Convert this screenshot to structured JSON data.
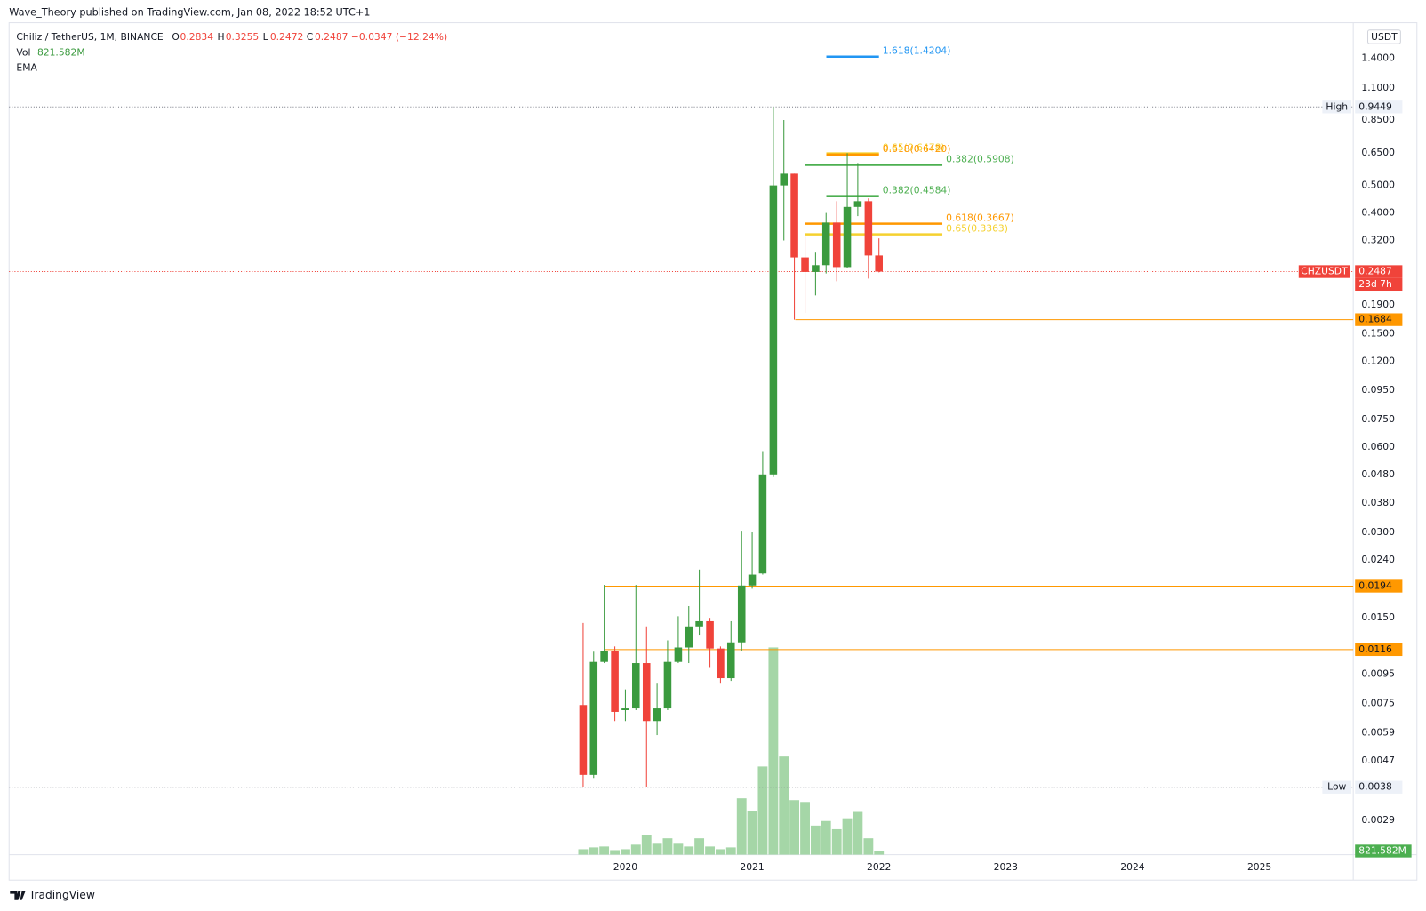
{
  "header": {
    "publisher": "Wave_Theory published on TradingView.com, Jan 08, 2022 18:52 UTC+1",
    "footer": "TradingView"
  },
  "chart_data": {
    "type": "candlestick",
    "symbol": "Chiliz / TetherUS, 1M, BINANCE",
    "ohlc_labels": [
      "O",
      "H",
      "L",
      "C"
    ],
    "change": "−0.0347 (−12.24%)",
    "indicators": [
      "Vol",
      "EMA"
    ],
    "currency": "USDT",
    "ticker": "CHZUSDT",
    "countdown": "23d 7h",
    "up_color": "#3a9a3e",
    "down_color": "#f0433a",
    "log_scale": true,
    "grid": false,
    "x": [
      2019.667,
      2019.75,
      2019.833,
      2019.917,
      2020.0,
      2020.083,
      2020.167,
      2020.25,
      2020.333,
      2020.417,
      2020.5,
      2020.583,
      2020.667,
      2020.75,
      2020.833,
      2020.917,
      2021.0,
      2021.083,
      2021.167,
      2021.25,
      2021.333,
      2021.417,
      2021.5,
      2021.583,
      2021.667,
      2021.75,
      2021.833,
      2021.917,
      2022.0
    ],
    "open": [
      0.0074,
      0.0042,
      0.0105,
      0.0115,
      0.0071,
      0.0072,
      0.0104,
      0.0065,
      0.0072,
      0.0105,
      0.0118,
      0.014,
      0.0146,
      0.0117,
      0.0092,
      0.0123,
      0.0195,
      0.0215,
      0.048,
      0.5,
      0.55,
      0.279,
      0.248,
      0.262,
      0.37,
      0.258,
      0.42,
      0.44,
      0.2834
    ],
    "high": [
      0.0144,
      0.0114,
      0.0196,
      0.0119,
      0.0084,
      0.0196,
      0.014,
      0.0088,
      0.0125,
      0.0152,
      0.0165,
      0.0222,
      0.015,
      0.0119,
      0.0146,
      0.0302,
      0.03,
      0.058,
      0.9449,
      0.85,
      0.55,
      0.33,
      0.29,
      0.4,
      0.44,
      0.65,
      0.6,
      0.45,
      0.3255
    ],
    "low": [
      0.0038,
      0.0041,
      0.0104,
      0.0065,
      0.0065,
      0.0071,
      0.0038,
      0.0058,
      0.0071,
      0.0104,
      0.0104,
      0.013,
      0.01,
      0.0088,
      0.009,
      0.0115,
      0.019,
      0.0213,
      0.047,
      0.32,
      0.1684,
      0.178,
      0.205,
      0.245,
      0.23,
      0.255,
      0.39,
      0.235,
      0.2472
    ],
    "close": [
      0.0042,
      0.0105,
      0.0115,
      0.007,
      0.0072,
      0.0104,
      0.0065,
      0.0072,
      0.0105,
      0.0118,
      0.014,
      0.0146,
      0.0117,
      0.0092,
      0.0123,
      0.0195,
      0.0213,
      0.048,
      0.5,
      0.55,
      0.279,
      0.248,
      0.262,
      0.37,
      0.258,
      0.42,
      0.44,
      0.2834,
      0.2487
    ],
    "volume": {
      "name": "Vol",
      "color": "#a5d6a7",
      "ylim": [
        0,
        60000
      ],
      "values": [
        1232,
        1643,
        1849,
        1027,
        1232,
        2259,
        4519,
        2465,
        3697,
        2465,
        1849,
        3697,
        1849,
        1232,
        1643,
        12735,
        9859,
        19924,
        46831,
        22183,
        12324,
        11913,
        6573,
        7600,
        5751,
        8216,
        9654,
        3697,
        821.582
      ],
      "value_labels": [
        null,
        null,
        null,
        null,
        null,
        null,
        null,
        null,
        null,
        null,
        null,
        null,
        null,
        null,
        null,
        null,
        null,
        null,
        null,
        null,
        null,
        null,
        null,
        null,
        null,
        null,
        null,
        null,
        "821.582M"
      ]
    },
    "xlim": [
      2015.14,
      2025.74
    ],
    "xticks": [
      2020,
      2021,
      2022,
      2023,
      2024,
      2025
    ],
    "ylim": [
      0.0022,
      1.87
    ],
    "yticks": [
      {
        "value": 1.4,
        "label": "1.4000"
      },
      {
        "value": 1.1,
        "label": "1.1000"
      },
      {
        "value": 0.85,
        "label": "0.8500"
      },
      {
        "value": 0.65,
        "label": "0.6500"
      },
      {
        "value": 0.5,
        "label": "0.5000"
      },
      {
        "value": 0.4,
        "label": "0.4000"
      },
      {
        "value": 0.32,
        "label": "0.3200"
      },
      {
        "value": 0.19,
        "label": "0.1900"
      },
      {
        "value": 0.15,
        "label": "0.1500"
      },
      {
        "value": 0.12,
        "label": "0.1200"
      },
      {
        "value": 0.095,
        "label": "0.0950"
      },
      {
        "value": 0.075,
        "label": "0.0750"
      },
      {
        "value": 0.06,
        "label": "0.0600"
      },
      {
        "value": 0.048,
        "label": "0.0480"
      },
      {
        "value": 0.038,
        "label": "0.0380"
      },
      {
        "value": 0.03,
        "label": "0.0300"
      },
      {
        "value": 0.024,
        "label": "0.0240"
      },
      {
        "value": 0.015,
        "label": "0.0150"
      },
      {
        "value": 0.0095,
        "label": "0.0095"
      },
      {
        "value": 0.0075,
        "label": "0.0075"
      },
      {
        "value": 0.0059,
        "label": "0.0059"
      },
      {
        "value": 0.0047,
        "label": "0.0047"
      },
      {
        "value": 0.0029,
        "label": "0.0029"
      }
    ],
    "marker_lines": [
      {
        "name": "High",
        "value": 0.9449
      },
      {
        "name": "Low",
        "value": 0.0038
      }
    ],
    "levels": [
      {
        "value": 0.1684,
        "color": "#ff9800",
        "x0": 2021.34
      },
      {
        "value": 0.0194,
        "color": "#ff9800",
        "x0": 2019.835
      },
      {
        "value": 0.0116,
        "color": "#ff9800",
        "x0": 2019.835
      }
    ],
    "fib": [
      {
        "value": 1.4204,
        "label": "1.618(1.4204)",
        "color": "#2196f3",
        "x": [
          2021.585,
          2022.0
        ]
      },
      {
        "value": 0.6478,
        "label": "0.65(0.6478)",
        "color": "#f5d12f",
        "x": [
          2021.585,
          2022.0
        ]
      },
      {
        "value": 0.642,
        "label": "0.618(0.6420)",
        "color": "#ff9800",
        "x": [
          2021.585,
          2022.0
        ]
      },
      {
        "value": 0.5908,
        "label": "0.382(0.5908)",
        "color": "#4caf50",
        "x": [
          2021.42,
          2022.5
        ]
      },
      {
        "value": 0.4584,
        "label": "0.382(0.4584)",
        "color": "#4caf50",
        "x": [
          2021.585,
          2022.0
        ]
      },
      {
        "value": 0.3667,
        "label": "0.618(0.3667)",
        "color": "#ff9800",
        "x": [
          2021.42,
          2022.5
        ]
      },
      {
        "value": 0.3363,
        "label": "0.65(0.3363)",
        "color": "#f5d12f",
        "x": [
          2021.42,
          2022.5
        ]
      }
    ]
  }
}
